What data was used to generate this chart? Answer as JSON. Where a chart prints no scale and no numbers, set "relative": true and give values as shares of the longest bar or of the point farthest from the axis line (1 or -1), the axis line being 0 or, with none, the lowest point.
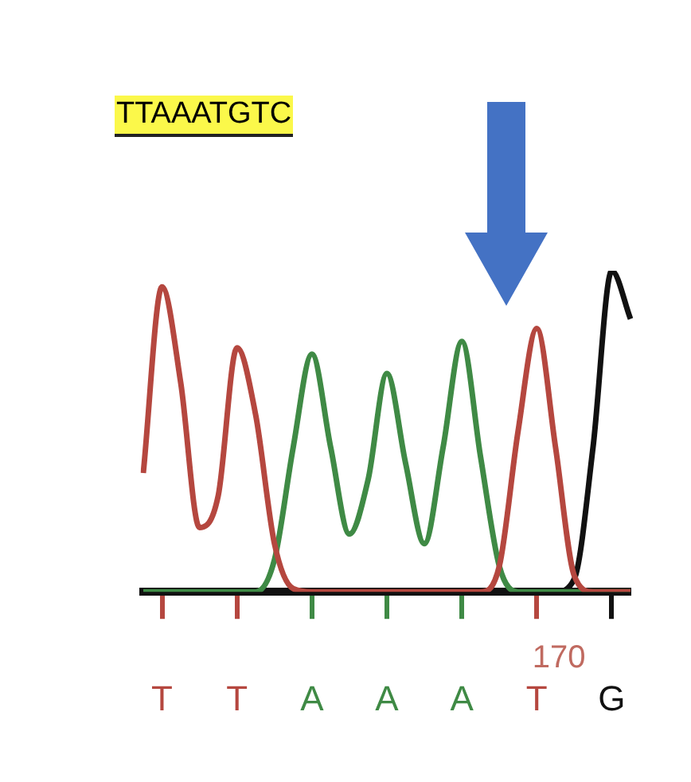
{
  "chart_data": {
    "type": "line",
    "title": "TTAAATGTC",
    "relative": true,
    "marker": "none",
    "categories": [
      null,
      "T",
      null,
      null,
      null,
      "T",
      null,
      null,
      null,
      "A",
      null,
      null,
      null,
      "A",
      null,
      null,
      null,
      "A",
      null,
      null,
      null,
      "T",
      null,
      null,
      null,
      "G",
      null
    ],
    "annotations": [
      "170"
    ],
    "series": [
      {
        "color": "#b5473f",
        "values": [
          0.37,
          0.95,
          0.65,
          0.2,
          0.3,
          0.76,
          0.55,
          0.15,
          0.01,
          0,
          0,
          0,
          0,
          0,
          0,
          0,
          0,
          0,
          0,
          0.08,
          0.5,
          0.82,
          0.45,
          0.05,
          0,
          0,
          0
        ]
      },
      {
        "color": "#3f8a45",
        "values": [
          0,
          0,
          0,
          0,
          0,
          0,
          0,
          0.1,
          0.45,
          0.74,
          0.45,
          0.18,
          0.35,
          0.68,
          0.4,
          0.15,
          0.45,
          0.78,
          0.42,
          0.08,
          0,
          0,
          0,
          0,
          0,
          0,
          0
        ]
      },
      {
        "color": "#111111",
        "values": [
          0,
          0,
          0,
          0,
          0,
          0,
          0,
          0,
          0,
          0,
          0,
          0,
          0,
          0,
          0,
          0,
          0,
          0,
          0,
          0,
          0,
          0,
          0,
          0.04,
          0.45,
          1,
          0.85
        ]
      }
    ]
  }
}
